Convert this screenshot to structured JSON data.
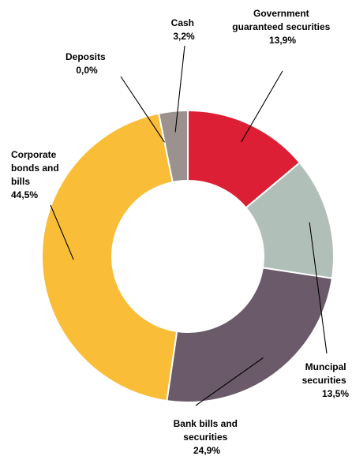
{
  "chart_data": {
    "type": "pie",
    "title": "",
    "donut": true,
    "categories": [
      "Government guaranteed securities",
      "Muncipal securities",
      "Bank bills and securities",
      "Corporate bonds and bills",
      "Deposits",
      "Cash"
    ],
    "values": [
      13.9,
      13.5,
      24.9,
      44.5,
      0.0,
      3.2
    ],
    "colors": [
      "#dc1f34",
      "#b1bfb9",
      "#6b5b6a",
      "#f9bd37",
      "#9e2a33",
      "#9b918f"
    ],
    "labels": [
      {
        "lines": [
          "Government",
          "guaranteed securities"
        ],
        "value": "13,9%"
      },
      {
        "lines": [
          "Muncipal",
          "securities"
        ],
        "value": "13,5%"
      },
      {
        "lines": [
          "Bank bills and",
          "securities"
        ],
        "value": "24,9%"
      },
      {
        "lines": [
          "Corporate",
          "bonds and",
          "bills"
        ],
        "value": "44,5%"
      },
      {
        "lines": [
          "Deposits"
        ],
        "value": "0,0%"
      },
      {
        "lines": [
          "Cash"
        ],
        "value": "3,2%"
      }
    ],
    "legend": "none"
  }
}
